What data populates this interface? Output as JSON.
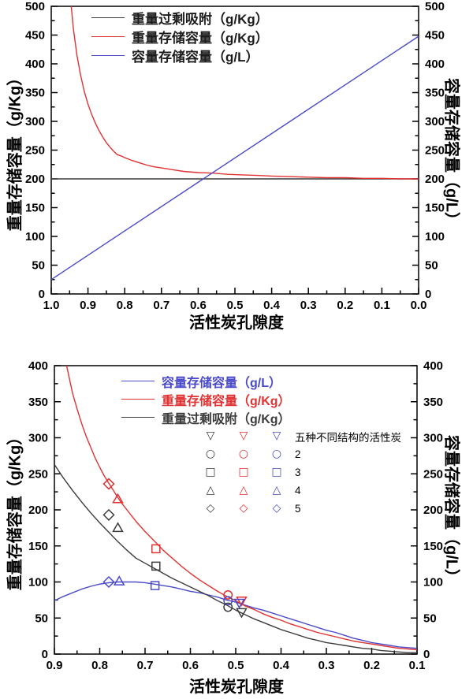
{
  "colors": {
    "black": "#3c3c3c",
    "red": "#e03232",
    "blue": "#4a4ac8",
    "frame": "#000000"
  },
  "chart_data": [
    {
      "type": "line",
      "position": "top",
      "xlabel": "活性炭孔隙度",
      "ylabel_left": "重量存储容量（g/Kg）",
      "ylabel_right": "容量存储容量（g/L）",
      "x_range": [
        1.0,
        0.0
      ],
      "y_range": [
        0,
        500
      ],
      "x_ticks": [
        1.0,
        0.9,
        0.8,
        0.7,
        0.6,
        0.5,
        0.4,
        0.3,
        0.2,
        0.1,
        0.0
      ],
      "y_ticks": [
        0,
        50,
        100,
        150,
        200,
        250,
        300,
        350,
        400,
        450,
        500
      ],
      "grid": false,
      "legend_position": "top-left-inside",
      "legend": [
        {
          "color": "black",
          "label": "重量过剩吸附（g/Kg）"
        },
        {
          "color": "red",
          "label": "重量存储容量（g/Kg）"
        },
        {
          "color": "blue",
          "label": "容量存储容量（g/L）"
        }
      ],
      "series": [
        {
          "name": "重量过剩吸附",
          "color": "black",
          "points": [
            [
              1.0,
              200
            ],
            [
              0.0,
              200
            ]
          ]
        },
        {
          "name": "重量存储容量",
          "color": "red",
          "points": [
            [
              0.947,
              510
            ],
            [
              0.94,
              462
            ],
            [
              0.93,
              415
            ],
            [
              0.92,
              380
            ],
            [
              0.91,
              352
            ],
            [
              0.9,
              330
            ],
            [
              0.89,
              312
            ],
            [
              0.88,
              297
            ],
            [
              0.87,
              284
            ],
            [
              0.86,
              273
            ],
            [
              0.85,
              263
            ],
            [
              0.84,
              255
            ],
            [
              0.83,
              248
            ],
            [
              0.82,
              242
            ],
            [
              0.81,
              240
            ],
            [
              0.8,
              237
            ],
            [
              0.78,
              232
            ],
            [
              0.76,
              228
            ],
            [
              0.74,
              224
            ],
            [
              0.72,
              221
            ],
            [
              0.7,
              219
            ],
            [
              0.67,
              216
            ],
            [
              0.64,
              213
            ],
            [
              0.6,
              211
            ],
            [
              0.56,
              210
            ],
            [
              0.52,
              208
            ],
            [
              0.48,
              207
            ],
            [
              0.44,
              206
            ],
            [
              0.4,
              205
            ],
            [
              0.35,
              204
            ],
            [
              0.3,
              203
            ],
            [
              0.25,
              202
            ],
            [
              0.2,
              202
            ],
            [
              0.15,
              201
            ],
            [
              0.1,
              201
            ],
            [
              0.05,
              200
            ],
            [
              0.0,
              200
            ]
          ]
        },
        {
          "name": "容量存储容量",
          "color": "blue",
          "points": [
            [
              1.0,
              25
            ],
            [
              0.0,
              448
            ]
          ]
        }
      ]
    },
    {
      "type": "line+scatter",
      "position": "bottom",
      "xlabel": "活性炭孔隙度",
      "ylabel_left": "重量存储容量（g/Kg）",
      "ylabel_right": "容量存储容量（g/L）",
      "x_range": [
        0.9,
        0.1
      ],
      "y_range": [
        0,
        400
      ],
      "x_ticks": [
        0.9,
        0.8,
        0.7,
        0.6,
        0.5,
        0.4,
        0.3,
        0.2,
        0.1
      ],
      "y_ticks": [
        0,
        50,
        100,
        150,
        200,
        250,
        300,
        350,
        400
      ],
      "grid": false,
      "legend_position": "top-right-inside",
      "legend": [
        {
          "color": "blue",
          "label": "容量存储容量（g/L）"
        },
        {
          "color": "red",
          "label": "重量存储容量（g/Kg）"
        },
        {
          "color": "black",
          "label": "重量过剩吸附（g/Kg）"
        }
      ],
      "marker_legend": {
        "column_colors": [
          "black",
          "red",
          "blue"
        ],
        "rows": [
          {
            "glyph": "▽",
            "shape": "triangle-down",
            "label": "五种不同结构的活性炭"
          },
          {
            "glyph": "○",
            "shape": "circle",
            "label": "2"
          },
          {
            "glyph": "□",
            "shape": "square",
            "label": "3"
          },
          {
            "glyph": "△",
            "shape": "triangle-up",
            "label": "4"
          },
          {
            "glyph": "◇",
            "shape": "diamond",
            "label": "5"
          }
        ]
      },
      "series": [
        {
          "name": "容量存储容量",
          "color": "blue",
          "points": [
            [
              0.9,
              74
            ],
            [
              0.88,
              80
            ],
            [
              0.86,
              85
            ],
            [
              0.84,
              90
            ],
            [
              0.82,
              94
            ],
            [
              0.8,
              97
            ],
            [
              0.78,
              99
            ],
            [
              0.76,
              100
            ],
            [
              0.74,
              100
            ],
            [
              0.72,
              100
            ],
            [
              0.7,
              99
            ],
            [
              0.68,
              97
            ],
            [
              0.66,
              95
            ],
            [
              0.64,
              93
            ],
            [
              0.62,
              90
            ],
            [
              0.6,
              87
            ],
            [
              0.58,
              85
            ],
            [
              0.56,
              82
            ],
            [
              0.54,
              79
            ],
            [
              0.52,
              75
            ],
            [
              0.5,
              72
            ],
            [
              0.48,
              68
            ],
            [
              0.46,
              64
            ],
            [
              0.44,
              61
            ],
            [
              0.42,
              57
            ],
            [
              0.4,
              53
            ],
            [
              0.38,
              49
            ],
            [
              0.36,
              45
            ],
            [
              0.34,
              41
            ],
            [
              0.32,
              37
            ],
            [
              0.3,
              33
            ],
            [
              0.28,
              30
            ],
            [
              0.26,
              26
            ],
            [
              0.24,
              22
            ],
            [
              0.22,
              19
            ],
            [
              0.2,
              16
            ],
            [
              0.18,
              14
            ],
            [
              0.16,
              12
            ],
            [
              0.14,
              10
            ],
            [
              0.12,
              9
            ],
            [
              0.1,
              8
            ]
          ]
        },
        {
          "name": "重量存储容量",
          "color": "red",
          "points": [
            [
              0.873,
              400
            ],
            [
              0.86,
              362
            ],
            [
              0.85,
              340
            ],
            [
              0.84,
              320
            ],
            [
              0.83,
              302
            ],
            [
              0.82,
              287
            ],
            [
              0.81,
              272
            ],
            [
              0.8,
              259
            ],
            [
              0.79,
              247
            ],
            [
              0.78,
              237
            ],
            [
              0.77,
              227
            ],
            [
              0.76,
              217
            ],
            [
              0.75,
              208
            ],
            [
              0.74,
              200
            ],
            [
              0.72,
              184
            ],
            [
              0.7,
              170
            ],
            [
              0.68,
              157
            ],
            [
              0.66,
              144
            ],
            [
              0.64,
              133
            ],
            [
              0.62,
              122
            ],
            [
              0.6,
              112
            ],
            [
              0.58,
              103
            ],
            [
              0.56,
              95
            ],
            [
              0.54,
              87
            ],
            [
              0.52,
              80
            ],
            [
              0.5,
              74
            ],
            [
              0.48,
              67
            ],
            [
              0.46,
              62
            ],
            [
              0.44,
              56
            ],
            [
              0.42,
              51
            ],
            [
              0.4,
              47
            ],
            [
              0.38,
              42
            ],
            [
              0.36,
              38
            ],
            [
              0.34,
              34
            ],
            [
              0.32,
              30
            ],
            [
              0.3,
              27
            ],
            [
              0.28,
              24
            ],
            [
              0.26,
              21
            ],
            [
              0.24,
              18
            ],
            [
              0.22,
              16
            ],
            [
              0.2,
              14
            ],
            [
              0.18,
              12
            ],
            [
              0.16,
              10
            ],
            [
              0.14,
              8
            ],
            [
              0.12,
              7
            ],
            [
              0.1,
              6
            ]
          ]
        },
        {
          "name": "重量过剩吸附",
          "color": "black",
          "points": [
            [
              0.9,
              263
            ],
            [
              0.88,
              244
            ],
            [
              0.86,
              227
            ],
            [
              0.84,
              211
            ],
            [
              0.82,
              196
            ],
            [
              0.8,
              182
            ],
            [
              0.78,
              169
            ],
            [
              0.76,
              156
            ],
            [
              0.74,
              144
            ],
            [
              0.72,
              133
            ],
            [
              0.7,
              126
            ],
            [
              0.68,
              119
            ],
            [
              0.66,
              112
            ],
            [
              0.64,
              105
            ],
            [
              0.62,
              99
            ],
            [
              0.6,
              93
            ],
            [
              0.58,
              87
            ],
            [
              0.56,
              81
            ],
            [
              0.54,
              74
            ],
            [
              0.52,
              68
            ],
            [
              0.5,
              61
            ],
            [
              0.48,
              55
            ],
            [
              0.46,
              49
            ],
            [
              0.44,
              44
            ],
            [
              0.42,
              39
            ],
            [
              0.4,
              34
            ],
            [
              0.38,
              30
            ],
            [
              0.36,
              26
            ],
            [
              0.34,
              22
            ],
            [
              0.32,
              19
            ],
            [
              0.3,
              16
            ],
            [
              0.28,
              14
            ],
            [
              0.26,
              12
            ],
            [
              0.24,
              10
            ],
            [
              0.22,
              8
            ],
            [
              0.2,
              7
            ],
            [
              0.18,
              5
            ],
            [
              0.16,
              4
            ],
            [
              0.14,
              3
            ],
            [
              0.12,
              2
            ],
            [
              0.1,
              2
            ]
          ]
        }
      ],
      "scatter": [
        {
          "shape": "diamond",
          "color": "red",
          "x": 0.78,
          "y": 236
        },
        {
          "shape": "diamond",
          "color": "black",
          "x": 0.78,
          "y": 193
        },
        {
          "shape": "diamond",
          "color": "blue",
          "x": 0.78,
          "y": 100
        },
        {
          "shape": "triangle-up",
          "color": "red",
          "x": 0.76,
          "y": 215
        },
        {
          "shape": "triangle-up",
          "color": "black",
          "x": 0.76,
          "y": 175
        },
        {
          "shape": "triangle-up",
          "color": "blue",
          "x": 0.757,
          "y": 101
        },
        {
          "shape": "square",
          "color": "red",
          "x": 0.676,
          "y": 146
        },
        {
          "shape": "square",
          "color": "black",
          "x": 0.676,
          "y": 122
        },
        {
          "shape": "square",
          "color": "blue",
          "x": 0.678,
          "y": 95
        },
        {
          "shape": "circle",
          "color": "red",
          "x": 0.517,
          "y": 82
        },
        {
          "shape": "circle",
          "color": "blue",
          "x": 0.517,
          "y": 74
        },
        {
          "shape": "circle",
          "color": "black",
          "x": 0.517,
          "y": 65
        },
        {
          "shape": "triangle-down",
          "color": "red",
          "x": 0.487,
          "y": 74
        },
        {
          "shape": "triangle-down",
          "color": "blue",
          "x": 0.492,
          "y": 71
        },
        {
          "shape": "triangle-down",
          "color": "black",
          "x": 0.487,
          "y": 58
        }
      ]
    }
  ]
}
